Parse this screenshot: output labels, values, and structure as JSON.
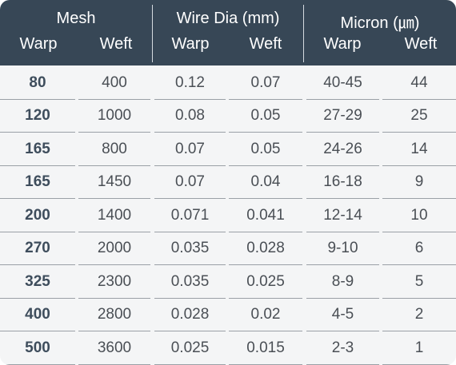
{
  "header": {
    "groups": [
      "Mesh",
      "Wire Dia (mm)",
      "Micron (㎛)"
    ],
    "subheaders": [
      "Warp",
      "Weft",
      "Warp",
      "Weft",
      "Warp",
      "Weft"
    ]
  },
  "rows": [
    [
      "80",
      "400",
      "0.12",
      "0.07",
      "40-45",
      "44"
    ],
    [
      "120",
      "1000",
      "0.08",
      "0.05",
      "27-29",
      "25"
    ],
    [
      "165",
      "800",
      "0.07",
      "0.05",
      "24-26",
      "14"
    ],
    [
      "165",
      "1450",
      "0.07",
      "0.04",
      "16-18",
      "9"
    ],
    [
      "200",
      "1400",
      "0.071",
      "0.041",
      "12-14",
      "10"
    ],
    [
      "270",
      "2000",
      "0.035",
      "0.028",
      "9-10",
      "6"
    ],
    [
      "325",
      "2300",
      "0.035",
      "0.025",
      "8-9",
      "5"
    ],
    [
      "400",
      "2800",
      "0.028",
      "0.02",
      "4-5",
      "2"
    ],
    [
      "500",
      "3600",
      "0.025",
      "0.015",
      "2-3",
      "1"
    ]
  ],
  "colors": {
    "header_bg": "#374756",
    "body_bg": "#f4f5f6",
    "header_text": "#ffffff",
    "cell_text": "#4a4f55"
  }
}
